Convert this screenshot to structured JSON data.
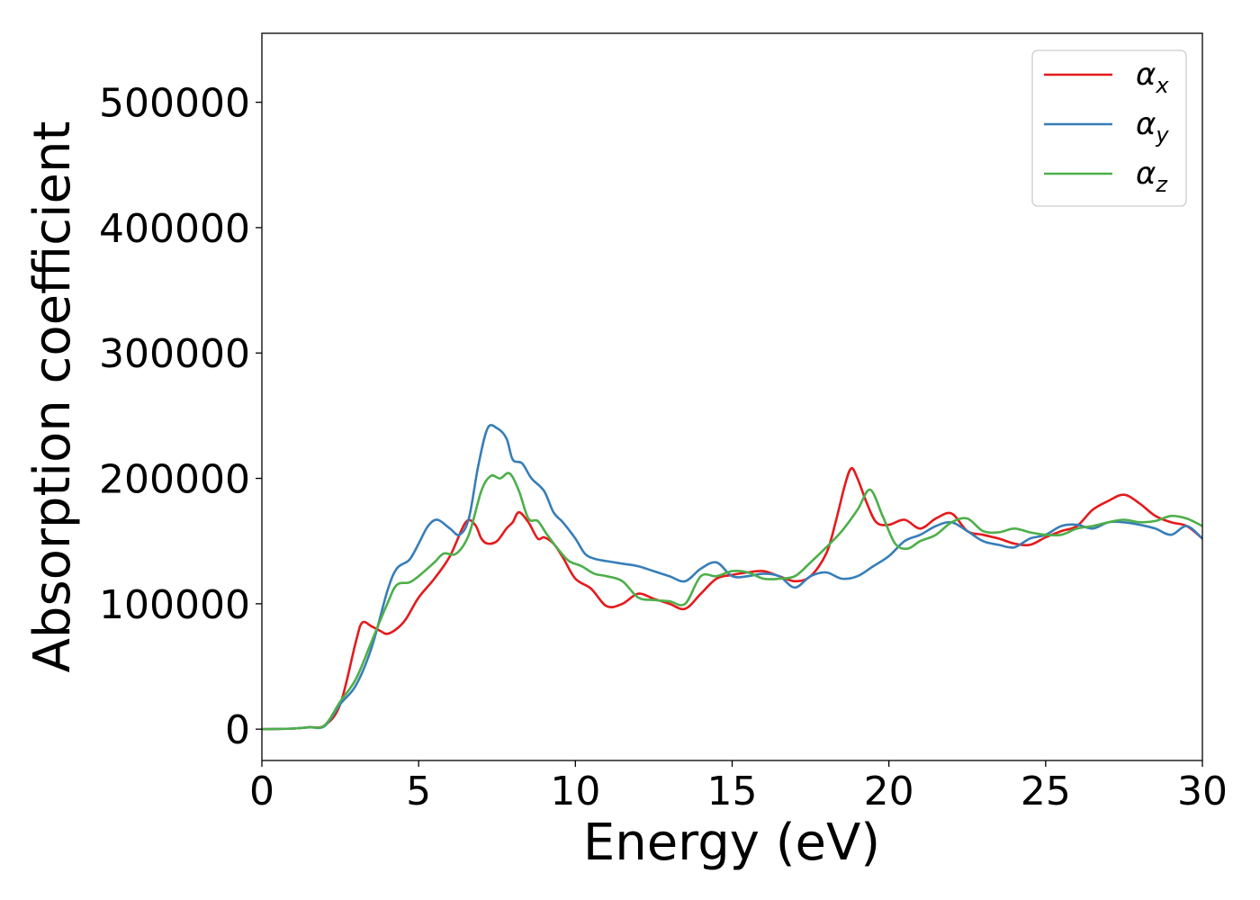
{
  "chart_data": {
    "type": "line",
    "xlabel": "Energy (eV)",
    "ylabel": "Absorption coefficient",
    "xlim": [
      0,
      30
    ],
    "ylim": [
      -25000,
      555000
    ],
    "xticks": [
      0,
      5,
      10,
      15,
      20,
      25,
      30
    ],
    "yticks": [
      0,
      100000,
      200000,
      300000,
      400000,
      500000
    ],
    "grid": false,
    "legend_position": "top-right",
    "series": [
      {
        "name": "αx",
        "symbol": "α",
        "subscript": "x",
        "color": "#e41a1c",
        "x": [
          0,
          1,
          1.5,
          2,
          2.5,
          3,
          3.2,
          3.5,
          3.8,
          4,
          4.3,
          4.6,
          5,
          5.5,
          6,
          6.5,
          6.8,
          7,
          7.2,
          7.5,
          7.8,
          8,
          8.2,
          8.5,
          8.8,
          9,
          9.3,
          9.6,
          10,
          10.5,
          11,
          11.5,
          12,
          12.5,
          13,
          13.5,
          14,
          14.5,
          15,
          15.5,
          16,
          16.5,
          17,
          17.5,
          18,
          18.3,
          18.6,
          18.8,
          19,
          19.3,
          19.6,
          20,
          20.5,
          21,
          21.5,
          22,
          22.5,
          23,
          23.5,
          24,
          24.5,
          25,
          25.5,
          26,
          26.5,
          27,
          27.5,
          28,
          28.5,
          29,
          29.5,
          30
        ],
        "y": [
          0,
          500,
          1500,
          3000,
          20000,
          70000,
          85000,
          82000,
          78000,
          76000,
          80000,
          88000,
          105000,
          120000,
          138000,
          165000,
          163000,
          152000,
          148000,
          150000,
          160000,
          165000,
          173000,
          165000,
          152000,
          153000,
          148000,
          137000,
          120000,
          112000,
          98000,
          100000,
          108000,
          104000,
          100000,
          96000,
          108000,
          120000,
          123000,
          125000,
          126000,
          122000,
          118000,
          122000,
          140000,
          165000,
          195000,
          208000,
          200000,
          180000,
          165000,
          163000,
          167000,
          160000,
          168000,
          172000,
          158000,
          155000,
          152000,
          148000,
          147000,
          153000,
          158000,
          162000,
          175000,
          182000,
          187000,
          180000,
          170000,
          165000,
          162000,
          152000
        ]
      },
      {
        "name": "αy",
        "symbol": "α",
        "subscript": "y",
        "color": "#377eb8",
        "x": [
          0,
          1,
          1.5,
          2,
          2.5,
          3,
          3.5,
          4,
          4.3,
          4.7,
          5,
          5.3,
          5.6,
          6,
          6.3,
          6.6,
          6.9,
          7.2,
          7.5,
          7.8,
          8,
          8.3,
          8.6,
          9,
          9.3,
          9.6,
          10,
          10.3,
          10.6,
          11,
          11.5,
          12,
          12.5,
          13,
          13.5,
          14,
          14.5,
          15,
          15.5,
          16,
          16.5,
          17,
          17.5,
          18,
          18.5,
          19,
          19.5,
          20,
          20.5,
          21,
          21.5,
          22,
          22.5,
          23,
          23.5,
          24,
          24.5,
          25,
          25.5,
          26,
          26.5,
          27,
          27.5,
          28,
          28.5,
          29,
          29.5,
          30
        ],
        "y": [
          0,
          500,
          1500,
          2500,
          20000,
          35000,
          65000,
          110000,
          128000,
          135000,
          148000,
          162000,
          167000,
          160000,
          155000,
          168000,
          210000,
          240000,
          240000,
          232000,
          215000,
          212000,
          200000,
          190000,
          173000,
          165000,
          152000,
          140000,
          136000,
          134000,
          132000,
          130000,
          126000,
          122000,
          118000,
          128000,
          133000,
          122000,
          122000,
          124000,
          122000,
          113000,
          122000,
          125000,
          120000,
          122000,
          130000,
          138000,
          150000,
          155000,
          162000,
          165000,
          158000,
          150000,
          147000,
          145000,
          152000,
          155000,
          162000,
          163000,
          160000,
          165000,
          165000,
          163000,
          160000,
          155000,
          162000,
          152000
        ]
      },
      {
        "name": "αz",
        "symbol": "α",
        "subscript": "z",
        "color": "#4daf4a",
        "x": [
          0,
          1,
          1.5,
          2,
          2.5,
          3,
          3.5,
          4,
          4.3,
          4.7,
          5,
          5.5,
          5.8,
          6.2,
          6.6,
          7,
          7.3,
          7.6,
          7.9,
          8.2,
          8.5,
          8.8,
          9.1,
          9.5,
          9.8,
          10.2,
          10.6,
          11,
          11.5,
          12,
          12.5,
          13,
          13.5,
          14,
          14.5,
          15,
          15.5,
          16,
          16.5,
          17,
          17.5,
          18,
          18.5,
          19,
          19.4,
          19.8,
          20.2,
          20.6,
          21,
          21.5,
          22,
          22.5,
          23,
          23.5,
          24,
          24.5,
          25,
          25.5,
          26,
          26.5,
          27,
          27.5,
          28,
          28.5,
          29,
          29.5,
          30
        ],
        "y": [
          0,
          500,
          1500,
          3000,
          22000,
          40000,
          70000,
          100000,
          115000,
          117000,
          122000,
          133000,
          140000,
          140000,
          155000,
          190000,
          202000,
          200000,
          204000,
          190000,
          168000,
          166000,
          155000,
          142000,
          134000,
          130000,
          124000,
          122000,
          118000,
          105000,
          103000,
          102000,
          100000,
          122000,
          122000,
          126000,
          125000,
          120000,
          120000,
          122000,
          133000,
          145000,
          158000,
          175000,
          191000,
          170000,
          148000,
          144000,
          150000,
          155000,
          165000,
          168000,
          158000,
          157000,
          160000,
          157000,
          155000,
          155000,
          160000,
          162000,
          165000,
          167000,
          165000,
          166000,
          170000,
          168000,
          162000
        ]
      }
    ]
  }
}
